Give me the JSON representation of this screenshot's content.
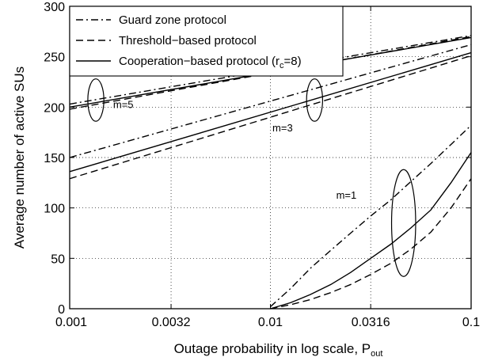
{
  "chart_data": {
    "type": "line",
    "xlabel": "Outage probability in log scale, P",
    "xlabel_sub": "out",
    "ylabel": "Average number of active SUs",
    "xscale": "log",
    "xlim": [
      0.001,
      0.1
    ],
    "ylim": [
      0,
      300
    ],
    "xticks": [
      0.001,
      0.0032,
      0.01,
      0.0316,
      0.1
    ],
    "xtick_labels": [
      "0.001",
      "0.0032",
      "0.01",
      "0.0316",
      "0.1"
    ],
    "yticks": [
      0,
      50,
      100,
      150,
      200,
      250,
      300
    ],
    "ytick_labels": [
      "0",
      "50",
      "100",
      "150",
      "200",
      "250",
      "300"
    ],
    "grid": true,
    "grid_style": "dotted",
    "legend_position": "top-left",
    "legend": [
      {
        "label": "Guard zone protocol",
        "style": "dashdot"
      },
      {
        "label": "Threshold−based protocol",
        "style": "dashed"
      },
      {
        "label": "Cooperation−based protocol (r",
        "sub": "c",
        "suffix": "=8)",
        "style": "solid"
      }
    ],
    "series": [
      {
        "group": "m=5",
        "legend_index": 0,
        "x": [
          0.001,
          0.1
        ],
        "y": [
          203,
          271
        ]
      },
      {
        "group": "m=5",
        "legend_index": 1,
        "x": [
          0.001,
          0.1
        ],
        "y": [
          198,
          270
        ]
      },
      {
        "group": "m=5",
        "legend_index": 2,
        "x": [
          0.001,
          0.1
        ],
        "y": [
          200,
          269
        ]
      },
      {
        "group": "m=3",
        "legend_index": 0,
        "x": [
          0.001,
          0.1
        ],
        "y": [
          150,
          262
        ]
      },
      {
        "group": "m=3",
        "legend_index": 1,
        "x": [
          0.001,
          0.1
        ],
        "y": [
          129,
          251
        ]
      },
      {
        "group": "m=3",
        "legend_index": 2,
        "x": [
          0.001,
          0.1
        ],
        "y": [
          136,
          254
        ]
      },
      {
        "group": "m=1",
        "legend_index": 0,
        "x": [
          0.01,
          0.0126,
          0.0158,
          0.02,
          0.0251,
          0.0316,
          0.0398,
          0.05,
          0.063,
          0.0794,
          0.1
        ],
        "y": [
          2,
          20,
          40,
          58,
          75,
          92,
          108,
          126,
          144,
          163,
          182
        ]
      },
      {
        "group": "m=1",
        "legend_index": 1,
        "x": [
          0.01,
          0.0126,
          0.0158,
          0.02,
          0.0251,
          0.0316,
          0.0398,
          0.05,
          0.063,
          0.0794,
          0.1
        ],
        "y": [
          0,
          4,
          9,
          16,
          24,
          34,
          45,
          59,
          76,
          100,
          129
        ]
      },
      {
        "group": "m=1",
        "legend_index": 2,
        "x": [
          0.01,
          0.0126,
          0.0158,
          0.02,
          0.0251,
          0.0316,
          0.0398,
          0.05,
          0.063,
          0.0794,
          0.1
        ],
        "y": [
          0,
          6,
          14,
          24,
          36,
          50,
          64,
          80,
          98,
          125,
          155
        ]
      }
    ],
    "annotations": [
      {
        "text": "m=5",
        "x": 0.00185,
        "y": 199
      },
      {
        "text": "m=3",
        "x": 0.0115,
        "y": 176
      },
      {
        "text": "m=1",
        "x": 0.0239,
        "y": 109
      }
    ],
    "ellipse_annotations": [
      {
        "group": "m=5",
        "cx": 0.00135,
        "cy": 207,
        "rx_decades": 0.04,
        "ry": 21
      },
      {
        "group": "m=3",
        "cx": 0.0166,
        "cy": 207,
        "rx_decades": 0.04,
        "ry": 21
      },
      {
        "group": "m=1",
        "cx": 0.0461,
        "cy": 85,
        "rx_decades": 0.06,
        "ry": 53
      }
    ]
  }
}
